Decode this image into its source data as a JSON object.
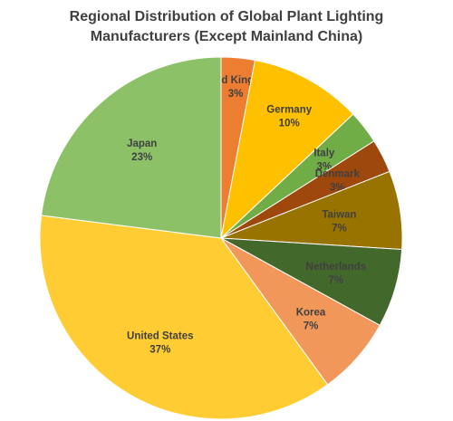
{
  "chart_data": {
    "type": "pie",
    "title_lines": [
      "Regional Distribution of Global Plant Lighting",
      "Manufacturers (Except Mainland China)"
    ],
    "slices": [
      {
        "label": "United Kingdom",
        "value": 3,
        "value_label": "3%",
        "color": "#ED7D31"
      },
      {
        "label": "Germany",
        "value": 10,
        "value_label": "10%",
        "color": "#FFC000"
      },
      {
        "label": "Italy",
        "value": 3,
        "value_label": "3%",
        "color": "#70AD47"
      },
      {
        "label": "Denmark",
        "value": 3,
        "value_label": "3%",
        "color": "#9E480E"
      },
      {
        "label": "Taiwan",
        "value": 7,
        "value_label": "7%",
        "color": "#997300"
      },
      {
        "label": "Netherlands",
        "value": 7,
        "value_label": "7%",
        "color": "#43682B"
      },
      {
        "label": "Korea",
        "value": 7,
        "value_label": "7%",
        "color": "#F1975A"
      },
      {
        "label": "United States",
        "value": 37,
        "value_label": "37%",
        "color": "#FFCD33"
      },
      {
        "label": "Japan",
        "value": 23,
        "value_label": "23%",
        "color": "#8CC168"
      }
    ],
    "start_angle_deg": 0,
    "direction": "clockwise",
    "legend": "none",
    "data_labels": "inside"
  }
}
